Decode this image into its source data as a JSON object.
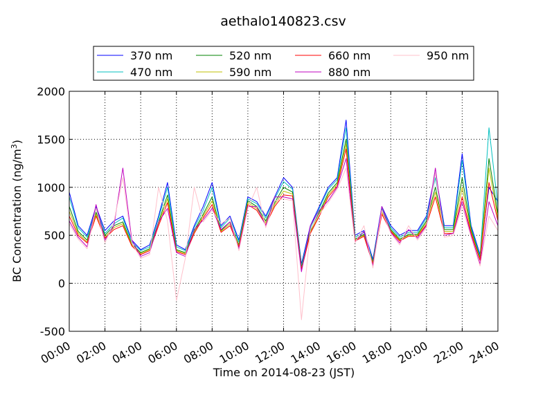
{
  "chart_data": {
    "type": "line",
    "title": "aethalo140823.csv",
    "xlabel": "Time on 2014-08-23 (JST)",
    "ylabel": "BC Concentration (ng/m³)",
    "ylabel_main": "BC Concentration (ng/m",
    "ylabel_sup": "3",
    "ylabel_tail": ")",
    "xlim": [
      "00:00",
      "24:00"
    ],
    "ylim": [
      -500,
      2000
    ],
    "x_ticks": [
      "00:00",
      "02:00",
      "04:00",
      "06:00",
      "08:00",
      "10:00",
      "12:00",
      "14:00",
      "16:00",
      "18:00",
      "20:00",
      "22:00",
      "24:00"
    ],
    "y_ticks": [
      -500,
      0,
      500,
      1000,
      1500,
      2000
    ],
    "grid": true,
    "legend": {
      "placement": "top-center",
      "columns": 4
    },
    "x": [
      "00:00",
      "00:30",
      "01:00",
      "01:30",
      "02:00",
      "02:30",
      "03:00",
      "03:30",
      "04:00",
      "04:30",
      "05:00",
      "05:30",
      "06:00",
      "06:30",
      "07:00",
      "07:30",
      "08:00",
      "08:30",
      "09:00",
      "09:30",
      "10:00",
      "10:30",
      "11:00",
      "11:30",
      "12:00",
      "12:30",
      "13:00",
      "13:30",
      "14:00",
      "14:30",
      "15:00",
      "15:30",
      "16:00",
      "16:30",
      "17:00",
      "17:30",
      "18:00",
      "18:30",
      "19:00",
      "19:30",
      "20:00",
      "20:30",
      "21:00",
      "21:30",
      "22:00",
      "22:30",
      "23:00",
      "23:30",
      "24:00"
    ],
    "series": [
      {
        "name": "370 nm",
        "color": "#0000ff",
        "values": [
          950,
          600,
          500,
          800,
          550,
          650,
          700,
          450,
          350,
          400,
          700,
          1050,
          400,
          350,
          600,
          800,
          1050,
          600,
          700,
          450,
          900,
          850,
          700,
          900,
          1100,
          1000,
          200,
          600,
          800,
          1000,
          1100,
          1700,
          500,
          550,
          250,
          800,
          600,
          500,
          550,
          550,
          700,
          1150,
          600,
          600,
          1350,
          600,
          300,
          1000,
          850
        ]
      },
      {
        "name": "470 nm",
        "color": "#00bfbf",
        "values": [
          900,
          580,
          480,
          780,
          520,
          620,
          680,
          430,
          340,
          380,
          680,
          1000,
          380,
          340,
          580,
          760,
          1000,
          580,
          680,
          430,
          880,
          830,
          680,
          880,
          1060,
          980,
          180,
          580,
          780,
          980,
          1080,
          1620,
          480,
          530,
          230,
          780,
          580,
          480,
          530,
          530,
          680,
          1100,
          580,
          580,
          1280,
          580,
          280,
          1620,
          800
        ]
      },
      {
        "name": "520 nm",
        "color": "#008000",
        "values": [
          800,
          540,
          450,
          740,
          500,
          600,
          640,
          410,
          320,
          360,
          640,
          920,
          350,
          320,
          550,
          720,
          900,
          550,
          640,
          400,
          860,
          800,
          650,
          840,
          1000,
          950,
          160,
          550,
          740,
          940,
          1050,
          1500,
          460,
          510,
          220,
          760,
          560,
          460,
          510,
          510,
          650,
          1000,
          560,
          560,
          1100,
          560,
          260,
          1300,
          720
        ]
      },
      {
        "name": "590 nm",
        "color": "#bfbf00",
        "values": [
          750,
          520,
          430,
          720,
          480,
          580,
          620,
          400,
          310,
          350,
          620,
          880,
          340,
          310,
          530,
          700,
          860,
          540,
          620,
          390,
          840,
          780,
          630,
          820,
          960,
          930,
          150,
          530,
          720,
          920,
          1030,
          1450,
          450,
          500,
          210,
          740,
          550,
          450,
          500,
          500,
          630,
          950,
          540,
          540,
          1000,
          540,
          250,
          1200,
          680
        ]
      },
      {
        "name": "660 nm",
        "color": "#ff0000",
        "values": [
          700,
          500,
          420,
          700,
          470,
          560,
          600,
          390,
          300,
          340,
          600,
          840,
          330,
          300,
          520,
          680,
          820,
          530,
          600,
          380,
          820,
          760,
          610,
          800,
          920,
          910,
          140,
          520,
          700,
          900,
          1010,
          1400,
          440,
          490,
          200,
          720,
          540,
          440,
          490,
          490,
          610,
          900,
          520,
          520,
          900,
          520,
          240,
          1050,
          650
        ]
      },
      {
        "name": "880 nm",
        "color": "#bf00bf",
        "values": [
          650,
          480,
          380,
          820,
          450,
          600,
          1200,
          450,
          280,
          320,
          640,
          780,
          320,
          280,
          560,
          660,
          780,
          560,
          640,
          360,
          800,
          800,
          600,
          900,
          900,
          880,
          120,
          600,
          760,
          860,
          1000,
          1300,
          430,
          540,
          180,
          800,
          530,
          420,
          560,
          470,
          600,
          1200,
          500,
          520,
          850,
          500,
          200,
          850,
          600
        ]
      },
      {
        "name": "950 nm",
        "color": "#ffc0cb",
        "values": [
          620,
          460,
          360,
          780,
          420,
          640,
          1100,
          420,
          260,
          300,
          1000,
          650,
          -180,
          260,
          1000,
          640,
          760,
          620,
          680,
          340,
          780,
          1000,
          580,
          860,
          880,
          860,
          -380,
          560,
          720,
          840,
          980,
          1200,
          420,
          600,
          160,
          760,
          520,
          400,
          600,
          450,
          580,
          1150,
          480,
          500,
          800,
          480,
          180,
          700,
          550
        ]
      }
    ]
  }
}
